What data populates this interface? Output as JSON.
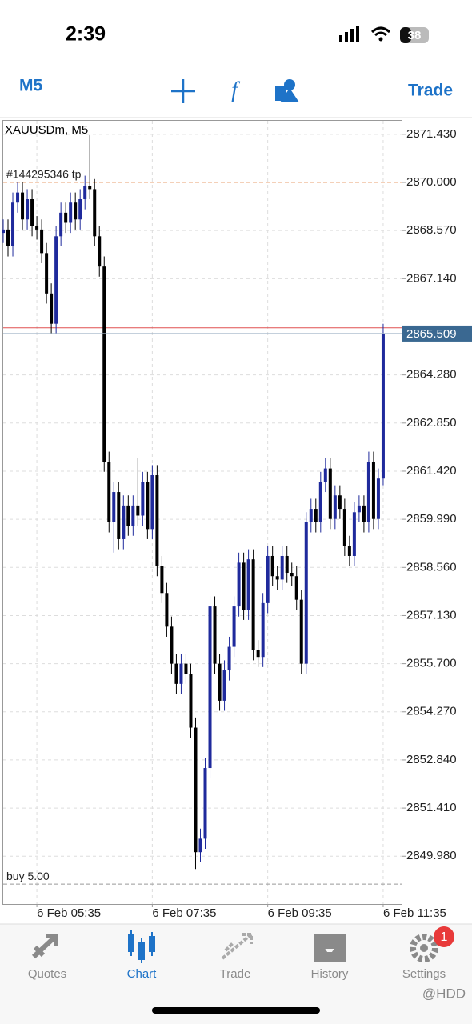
{
  "status_bar": {
    "time": "2:39",
    "battery": "38"
  },
  "toolbar": {
    "timeframe": "M5",
    "trade": "Trade"
  },
  "chart_data": {
    "type": "candlestick",
    "title": "XAUUSDm, M5",
    "open": [
      2868.5,
      2868.6,
      2868.1,
      2869.4,
      2869.7,
      2868.9,
      2869.5,
      2868.7,
      2868.6,
      2867.9,
      2866.7,
      2865.8,
      2868.4,
      2869.1,
      2868.8,
      2869.4,
      2868.9,
      2869.5,
      2869.9,
      2869.8,
      2868.4,
      2867.5,
      2861.7,
      2859.9,
      2860.8,
      2859.4,
      2860.4,
      2859.8,
      2860.4,
      2860.1,
      2861.1,
      2859.7,
      2861.3,
      2858.6,
      2857.8,
      2856.8,
      2855.7,
      2855.1,
      2855.7,
      2855.4,
      2853.8,
      2850.1,
      2850.5,
      2852.6,
      2857.4,
      2855.7,
      2854.6,
      2855.5,
      2856.2,
      2857.4,
      2858.7,
      2857.3,
      2858.8,
      2856.1,
      2855.9,
      2857.5,
      2858.9,
      2858.3,
      2858.2,
      2858.9,
      2858.4,
      2858.3,
      2857.6,
      2855.7,
      2859.9,
      2860.3,
      2859.9,
      2861.1,
      2861.5,
      2860.0,
      2860.7,
      2860.3,
      2859.2,
      2858.9,
      2860.2,
      2860.4,
      2859.9,
      2861.7,
      2860.0,
      2861.2
    ],
    "high": [
      2868.9,
      2868.9,
      2869.7,
      2870.0,
      2870.0,
      2869.8,
      2869.8,
      2869.0,
      2868.9,
      2868.2,
      2867.0,
      2868.7,
      2869.4,
      2869.4,
      2869.7,
      2869.7,
      2869.8,
      2870.2,
      2871.4,
      2870.1,
      2868.7,
      2867.8,
      2862.0,
      2861.1,
      2861.1,
      2860.7,
      2860.7,
      2860.7,
      2861.8,
      2861.4,
      2861.4,
      2861.6,
      2861.6,
      2858.9,
      2858.1,
      2857.1,
      2856.0,
      2856.0,
      2856.0,
      2855.7,
      2854.1,
      2850.8,
      2852.9,
      2857.7,
      2857.7,
      2856.0,
      2855.8,
      2856.5,
      2857.7,
      2859.0,
      2859.0,
      2859.1,
      2859.1,
      2856.4,
      2857.8,
      2859.2,
      2859.2,
      2858.6,
      2859.2,
      2859.2,
      2858.7,
      2858.6,
      2857.9,
      2860.2,
      2860.6,
      2860.6,
      2861.4,
      2861.8,
      2861.8,
      2861.0,
      2861.0,
      2860.6,
      2859.5,
      2860.5,
      2860.7,
      2860.7,
      2862.0,
      2862.0,
      2861.5,
      2865.8
    ],
    "low": [
      2868.2,
      2867.8,
      2867.8,
      2869.1,
      2868.6,
      2868.6,
      2868.4,
      2868.3,
      2867.6,
      2866.4,
      2865.5,
      2865.5,
      2868.1,
      2868.5,
      2868.5,
      2868.6,
      2868.6,
      2869.2,
      2869.5,
      2868.1,
      2867.2,
      2861.4,
      2859.6,
      2859.0,
      2859.1,
      2859.1,
      2859.5,
      2859.5,
      2859.8,
      2859.8,
      2859.4,
      2859.4,
      2858.3,
      2857.5,
      2856.5,
      2855.4,
      2854.8,
      2854.8,
      2855.1,
      2853.5,
      2849.6,
      2849.8,
      2850.2,
      2852.3,
      2855.4,
      2854.3,
      2854.3,
      2855.2,
      2855.9,
      2857.1,
      2857.0,
      2857.0,
      2855.8,
      2855.6,
      2855.6,
      2857.2,
      2858.0,
      2857.9,
      2857.9,
      2858.1,
      2858.0,
      2857.3,
      2855.4,
      2855.4,
      2859.6,
      2859.6,
      2859.6,
      2860.8,
      2859.7,
      2859.7,
      2860.0,
      2858.9,
      2858.6,
      2858.6,
      2859.9,
      2859.6,
      2859.6,
      2859.7,
      2859.7,
      2861.0
    ],
    "close": [
      2868.6,
      2868.1,
      2869.4,
      2869.7,
      2868.9,
      2869.5,
      2868.7,
      2868.6,
      2867.9,
      2866.7,
      2865.8,
      2868.4,
      2869.1,
      2868.8,
      2869.4,
      2868.9,
      2869.5,
      2869.9,
      2869.8,
      2868.4,
      2867.5,
      2861.7,
      2859.9,
      2860.8,
      2859.4,
      2860.4,
      2859.8,
      2860.4,
      2860.1,
      2861.1,
      2859.7,
      2861.3,
      2858.6,
      2857.8,
      2856.8,
      2855.7,
      2855.1,
      2855.7,
      2855.4,
      2853.8,
      2850.1,
      2850.5,
      2852.6,
      2857.4,
      2855.7,
      2854.6,
      2855.5,
      2856.2,
      2857.4,
      2858.7,
      2857.3,
      2858.8,
      2856.1,
      2855.9,
      2857.5,
      2858.9,
      2858.3,
      2858.2,
      2858.9,
      2858.4,
      2858.3,
      2857.6,
      2855.7,
      2859.9,
      2860.3,
      2859.9,
      2861.1,
      2861.5,
      2860.0,
      2860.7,
      2860.3,
      2859.2,
      2858.9,
      2860.2,
      2860.4,
      2859.9,
      2861.7,
      2860.0,
      2861.2,
      2865.51
    ],
    "up_color": "#1f2a9c",
    "down_color": "#000000",
    "xlim": [
      0,
      83
    ],
    "xticks": [
      {
        "value": 7,
        "label": "6 Feb 05:35"
      },
      {
        "value": 31,
        "label": "6 Feb 07:35"
      },
      {
        "value": 55,
        "label": "6 Feb 09:35"
      },
      {
        "value": 79,
        "label": "6 Feb 11:35"
      }
    ],
    "ylim": [
      2848.56,
      2871.83
    ],
    "yticks": [
      {
        "value": 2871.43,
        "label": "2871.430"
      },
      {
        "value": 2870,
        "label": "2870.000"
      },
      {
        "value": 2868.57,
        "label": "2868.570"
      },
      {
        "value": 2867.14,
        "label": "2867.140"
      },
      {
        "value": 2864.28,
        "label": "2864.280"
      },
      {
        "value": 2862.85,
        "label": "2862.850"
      },
      {
        "value": 2861.42,
        "label": "2861.420"
      },
      {
        "value": 2859.99,
        "label": "2859.990"
      },
      {
        "value": 2858.56,
        "label": "2858.560"
      },
      {
        "value": 2857.13,
        "label": "2857.130"
      },
      {
        "value": 2855.7,
        "label": "2855.700"
      },
      {
        "value": 2854.27,
        "label": "2854.270"
      },
      {
        "value": 2852.84,
        "label": "2852.840"
      },
      {
        "value": 2851.41,
        "label": "2851.410"
      },
      {
        "value": 2849.98,
        "label": "2849.980"
      }
    ],
    "grid": true,
    "tp_line": {
      "label": "#144295346 tp",
      "value": 2870.0,
      "color": "#e8a070"
    },
    "buy_line": {
      "label": "buy 5.00",
      "value": 2849.15,
      "color": "#999999"
    },
    "ask_line": {
      "value": 2865.68,
      "color": "#e05050"
    },
    "current_price": {
      "value": 2865.509,
      "color": "#3a6891"
    }
  },
  "tab_bar": {
    "tabs": [
      "Quotes",
      "Chart",
      "Trade",
      "History",
      "Settings"
    ],
    "active": 1,
    "badge": "1"
  },
  "watermark": "@HDD"
}
